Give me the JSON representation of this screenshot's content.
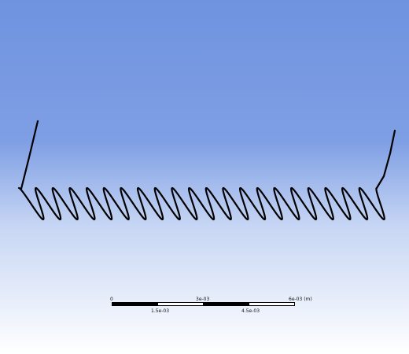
{
  "viewport": {
    "background_top": "#6f93e0",
    "background_mid": "#c7d6f4",
    "background_bottom": "#ffffff",
    "model": "helical-coil"
  },
  "scale_bar": {
    "top_labels": [
      "0",
      "3e-03",
      "6e-03 (m)"
    ],
    "bottom_labels": [
      "1.5e-03",
      "4.5e-03"
    ],
    "segment_colors": [
      "#000000",
      "#ffffff",
      "#000000",
      "#ffffff"
    ]
  }
}
